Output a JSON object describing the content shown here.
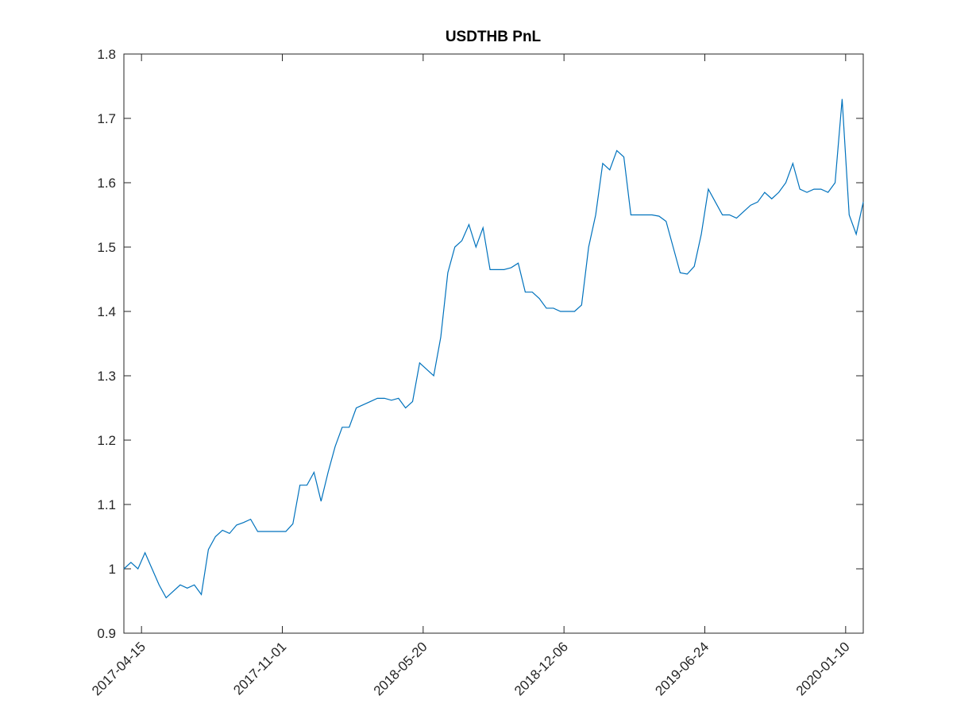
{
  "chart_data": {
    "type": "line",
    "title": "USDTHB PnL",
    "color": "#0072bd",
    "xlim": [
      "2017-03-21",
      "2020-02-04"
    ],
    "xticks": [
      "2017-04-15",
      "2017-11-01",
      "2018-05-20",
      "2018-12-06",
      "2019-06-24",
      "2020-01-10"
    ],
    "ylim": [
      0.9,
      1.8
    ],
    "yticks": [
      0.9,
      1,
      1.1,
      1.2,
      1.3,
      1.4,
      1.5,
      1.6,
      1.7,
      1.8
    ],
    "x": [
      "2017-03-21",
      "2017-03-31",
      "2017-04-10",
      "2017-04-20",
      "2017-04-30",
      "2017-05-10",
      "2017-05-20",
      "2017-05-30",
      "2017-06-09",
      "2017-06-19",
      "2017-06-29",
      "2017-07-09",
      "2017-07-19",
      "2017-07-29",
      "2017-08-08",
      "2017-08-18",
      "2017-08-28",
      "2017-09-07",
      "2017-09-17",
      "2017-09-27",
      "2017-10-07",
      "2017-10-17",
      "2017-10-27",
      "2017-11-06",
      "2017-11-16",
      "2017-11-26",
      "2017-12-06",
      "2017-12-16",
      "2017-12-26",
      "2018-01-05",
      "2018-01-15",
      "2018-01-25",
      "2018-02-04",
      "2018-02-14",
      "2018-02-24",
      "2018-03-06",
      "2018-03-16",
      "2018-03-26",
      "2018-04-05",
      "2018-04-15",
      "2018-04-25",
      "2018-05-05",
      "2018-05-15",
      "2018-05-25",
      "2018-06-04",
      "2018-06-14",
      "2018-06-24",
      "2018-07-04",
      "2018-07-14",
      "2018-07-24",
      "2018-08-03",
      "2018-08-13",
      "2018-08-23",
      "2018-09-02",
      "2018-09-12",
      "2018-09-22",
      "2018-10-02",
      "2018-10-12",
      "2018-10-22",
      "2018-11-01",
      "2018-11-11",
      "2018-11-21",
      "2018-12-01",
      "2018-12-11",
      "2018-12-21",
      "2018-12-31",
      "2019-01-10",
      "2019-01-20",
      "2019-01-30",
      "2019-02-09",
      "2019-02-19",
      "2019-03-01",
      "2019-03-11",
      "2019-03-21",
      "2019-03-31",
      "2019-04-10",
      "2019-04-20",
      "2019-04-30",
      "2019-05-10",
      "2019-05-20",
      "2019-05-30",
      "2019-06-09",
      "2019-06-19",
      "2019-06-29",
      "2019-07-09",
      "2019-07-19",
      "2019-07-29",
      "2019-08-08",
      "2019-08-18",
      "2019-08-28",
      "2019-09-07",
      "2019-09-17",
      "2019-09-27",
      "2019-10-07",
      "2019-10-17",
      "2019-10-27",
      "2019-11-06",
      "2019-11-16",
      "2019-11-26",
      "2019-12-06",
      "2019-12-16",
      "2019-12-26",
      "2020-01-05",
      "2020-01-15",
      "2020-01-25",
      "2020-02-04"
    ],
    "values": [
      1.0,
      1.01,
      1.0,
      1.025,
      1.0,
      0.975,
      0.955,
      0.965,
      0.975,
      0.97,
      0.975,
      0.96,
      1.03,
      1.05,
      1.06,
      1.055,
      1.068,
      1.072,
      1.077,
      1.058,
      1.058,
      1.058,
      1.058,
      1.058,
      1.07,
      1.13,
      1.13,
      1.15,
      1.105,
      1.15,
      1.19,
      1.22,
      1.22,
      1.25,
      1.255,
      1.26,
      1.265,
      1.265,
      1.262,
      1.265,
      1.25,
      1.26,
      1.32,
      1.31,
      1.3,
      1.36,
      1.46,
      1.5,
      1.51,
      1.535,
      1.5,
      1.53,
      1.465,
      1.465,
      1.465,
      1.468,
      1.475,
      1.43,
      1.43,
      1.42,
      1.405,
      1.405,
      1.4,
      1.4,
      1.4,
      1.41,
      1.5,
      1.55,
      1.63,
      1.62,
      1.65,
      1.64,
      1.55,
      1.55,
      1.55,
      1.55,
      1.548,
      1.54,
      1.5,
      1.46,
      1.458,
      1.47,
      1.52,
      1.59,
      1.57,
      1.55,
      1.55,
      1.545,
      1.555,
      1.565,
      1.57,
      1.585,
      1.575,
      1.585,
      1.6,
      1.63,
      1.59,
      1.585,
      1.59,
      1.59,
      1.585,
      1.6,
      1.73,
      1.55,
      1.52,
      1.57
    ]
  }
}
